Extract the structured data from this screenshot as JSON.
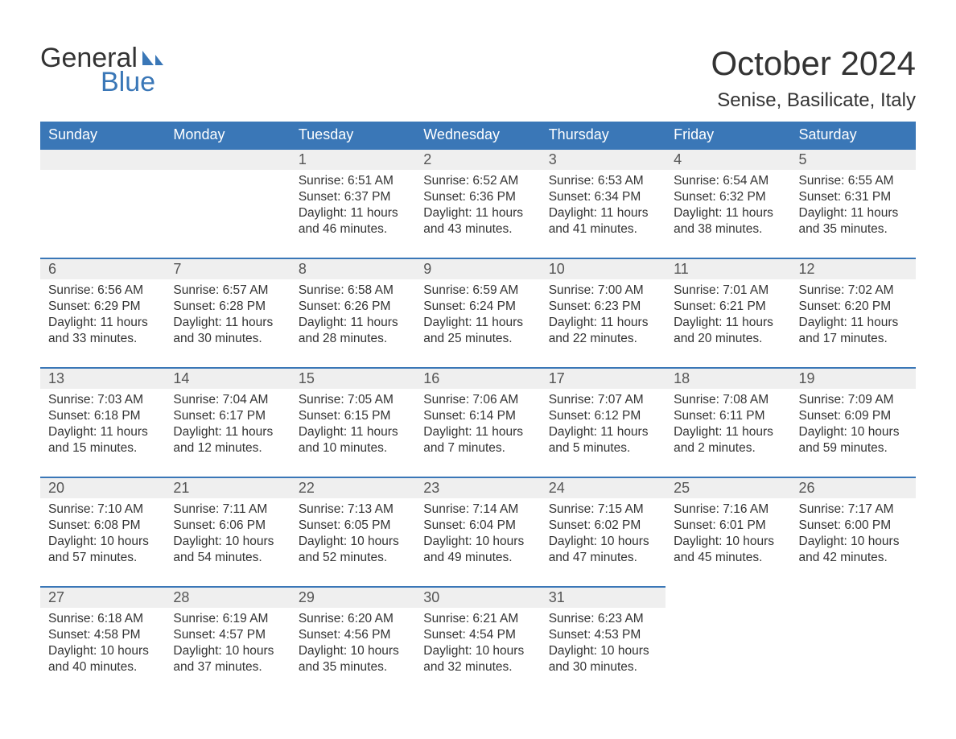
{
  "brand": {
    "general": "General",
    "blue": "Blue"
  },
  "colors": {
    "accent": "#3a77b7",
    "header_text": "#ffffff",
    "day_number_bg": "#efefef",
    "text": "#333333",
    "muted": "#555555",
    "background": "#ffffff"
  },
  "typography": {
    "title_fontsize": 42,
    "location_fontsize": 24,
    "day_header_fontsize": 18,
    "day_number_fontsize": 18,
    "body_fontsize": 15.5,
    "font_family": "Arial"
  },
  "title": "October 2024",
  "location": "Senise, Basilicate, Italy",
  "day_headers": [
    "Sunday",
    "Monday",
    "Tuesday",
    "Wednesday",
    "Thursday",
    "Friday",
    "Saturday"
  ],
  "labels": {
    "sunrise": "Sunrise:",
    "sunset": "Sunset:",
    "daylight": "Daylight:"
  },
  "weeks": [
    [
      {
        "blank": true
      },
      {
        "blank": true
      },
      {
        "day": "1",
        "sunrise": "6:51 AM",
        "sunset": "6:37 PM",
        "daylight": "11 hours and 46 minutes."
      },
      {
        "day": "2",
        "sunrise": "6:52 AM",
        "sunset": "6:36 PM",
        "daylight": "11 hours and 43 minutes."
      },
      {
        "day": "3",
        "sunrise": "6:53 AM",
        "sunset": "6:34 PM",
        "daylight": "11 hours and 41 minutes."
      },
      {
        "day": "4",
        "sunrise": "6:54 AM",
        "sunset": "6:32 PM",
        "daylight": "11 hours and 38 minutes."
      },
      {
        "day": "5",
        "sunrise": "6:55 AM",
        "sunset": "6:31 PM",
        "daylight": "11 hours and 35 minutes."
      }
    ],
    [
      {
        "day": "6",
        "sunrise": "6:56 AM",
        "sunset": "6:29 PM",
        "daylight": "11 hours and 33 minutes."
      },
      {
        "day": "7",
        "sunrise": "6:57 AM",
        "sunset": "6:28 PM",
        "daylight": "11 hours and 30 minutes."
      },
      {
        "day": "8",
        "sunrise": "6:58 AM",
        "sunset": "6:26 PM",
        "daylight": "11 hours and 28 minutes."
      },
      {
        "day": "9",
        "sunrise": "6:59 AM",
        "sunset": "6:24 PM",
        "daylight": "11 hours and 25 minutes."
      },
      {
        "day": "10",
        "sunrise": "7:00 AM",
        "sunset": "6:23 PM",
        "daylight": "11 hours and 22 minutes."
      },
      {
        "day": "11",
        "sunrise": "7:01 AM",
        "sunset": "6:21 PM",
        "daylight": "11 hours and 20 minutes."
      },
      {
        "day": "12",
        "sunrise": "7:02 AM",
        "sunset": "6:20 PM",
        "daylight": "11 hours and 17 minutes."
      }
    ],
    [
      {
        "day": "13",
        "sunrise": "7:03 AM",
        "sunset": "6:18 PM",
        "daylight": "11 hours and 15 minutes."
      },
      {
        "day": "14",
        "sunrise": "7:04 AM",
        "sunset": "6:17 PM",
        "daylight": "11 hours and 12 minutes."
      },
      {
        "day": "15",
        "sunrise": "7:05 AM",
        "sunset": "6:15 PM",
        "daylight": "11 hours and 10 minutes."
      },
      {
        "day": "16",
        "sunrise": "7:06 AM",
        "sunset": "6:14 PM",
        "daylight": "11 hours and 7 minutes."
      },
      {
        "day": "17",
        "sunrise": "7:07 AM",
        "sunset": "6:12 PM",
        "daylight": "11 hours and 5 minutes."
      },
      {
        "day": "18",
        "sunrise": "7:08 AM",
        "sunset": "6:11 PM",
        "daylight": "11 hours and 2 minutes."
      },
      {
        "day": "19",
        "sunrise": "7:09 AM",
        "sunset": "6:09 PM",
        "daylight": "10 hours and 59 minutes."
      }
    ],
    [
      {
        "day": "20",
        "sunrise": "7:10 AM",
        "sunset": "6:08 PM",
        "daylight": "10 hours and 57 minutes."
      },
      {
        "day": "21",
        "sunrise": "7:11 AM",
        "sunset": "6:06 PM",
        "daylight": "10 hours and 54 minutes."
      },
      {
        "day": "22",
        "sunrise": "7:13 AM",
        "sunset": "6:05 PM",
        "daylight": "10 hours and 52 minutes."
      },
      {
        "day": "23",
        "sunrise": "7:14 AM",
        "sunset": "6:04 PM",
        "daylight": "10 hours and 49 minutes."
      },
      {
        "day": "24",
        "sunrise": "7:15 AM",
        "sunset": "6:02 PM",
        "daylight": "10 hours and 47 minutes."
      },
      {
        "day": "25",
        "sunrise": "7:16 AM",
        "sunset": "6:01 PM",
        "daylight": "10 hours and 45 minutes."
      },
      {
        "day": "26",
        "sunrise": "7:17 AM",
        "sunset": "6:00 PM",
        "daylight": "10 hours and 42 minutes."
      }
    ],
    [
      {
        "day": "27",
        "sunrise": "6:18 AM",
        "sunset": "4:58 PM",
        "daylight": "10 hours and 40 minutes."
      },
      {
        "day": "28",
        "sunrise": "6:19 AM",
        "sunset": "4:57 PM",
        "daylight": "10 hours and 37 minutes."
      },
      {
        "day": "29",
        "sunrise": "6:20 AM",
        "sunset": "4:56 PM",
        "daylight": "10 hours and 35 minutes."
      },
      {
        "day": "30",
        "sunrise": "6:21 AM",
        "sunset": "4:54 PM",
        "daylight": "10 hours and 32 minutes."
      },
      {
        "day": "31",
        "sunrise": "6:23 AM",
        "sunset": "4:53 PM",
        "daylight": "10 hours and 30 minutes."
      },
      {
        "blank": true,
        "trailing": true
      },
      {
        "blank": true,
        "trailing": true
      }
    ]
  ]
}
